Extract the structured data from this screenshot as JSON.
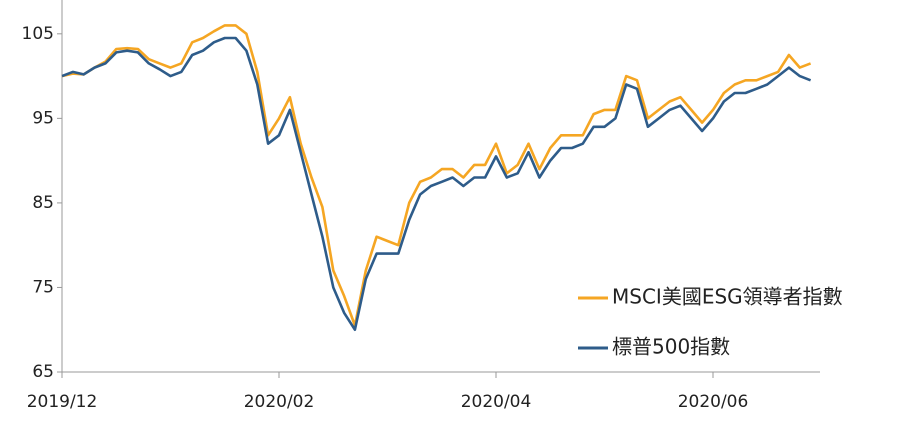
{
  "chart_data": {
    "type": "line",
    "categories": [
      "2019/12",
      null,
      null,
      null,
      null,
      null,
      null,
      null,
      null,
      null,
      null,
      null,
      null,
      null,
      null,
      null,
      null,
      null,
      null,
      null,
      "2020/02",
      null,
      null,
      null,
      null,
      null,
      null,
      null,
      null,
      null,
      null,
      null,
      null,
      null,
      null,
      null,
      null,
      null,
      null,
      null,
      "2020/04",
      null,
      null,
      null,
      null,
      null,
      null,
      null,
      null,
      null,
      null,
      null,
      null,
      null,
      null,
      null,
      null,
      null,
      null,
      null,
      "2020/06",
      null,
      null,
      null,
      null,
      null,
      null,
      null,
      null,
      null
    ],
    "series": [
      {
        "name": "MSCI美國ESG領導者指數",
        "color": "#f5a623",
        "values": [
          100,
          100.3,
          100.2,
          101,
          101.7,
          103.2,
          103.3,
          103.2,
          102,
          101.5,
          101,
          101.5,
          104,
          104.5,
          105.3,
          106,
          106,
          105,
          100.5,
          93,
          95,
          97.5,
          92,
          88,
          84.5,
          77,
          74,
          70.5,
          77,
          81,
          80.5,
          80,
          85,
          87.5,
          88,
          89,
          89,
          88,
          89.5,
          89.5,
          92,
          88.5,
          89.5,
          92,
          89,
          91.5,
          93,
          93,
          93,
          95.5,
          96,
          96,
          100,
          99.5,
          95,
          96,
          97,
          97.5,
          96,
          94.5,
          96,
          98,
          99,
          99.5,
          99.5,
          100,
          100.5,
          102.5,
          101,
          101.5
        ]
      },
      {
        "name": "標普500指數",
        "color": "#2e5c8a",
        "values": [
          100,
          100.5,
          100.2,
          101,
          101.5,
          102.8,
          103,
          102.8,
          101.5,
          100.8,
          100,
          100.5,
          102.5,
          103,
          104,
          104.5,
          104.5,
          103,
          99,
          92,
          93,
          96,
          91,
          86,
          81,
          75,
          72,
          70,
          76,
          79,
          79,
          79,
          83,
          86,
          87,
          87.5,
          88,
          87,
          88,
          88,
          90.5,
          88,
          88.5,
          91,
          88,
          90,
          91.5,
          91.5,
          92,
          94,
          94,
          95,
          99,
          98.5,
          94,
          95,
          96,
          96.5,
          95,
          93.5,
          95,
          97,
          98,
          98,
          98.5,
          99,
          100,
          101,
          100,
          99.5
        ]
      }
    ],
    "ylim": [
      65,
      109
    ],
    "yticks": [
      65,
      75,
      85,
      95,
      105
    ],
    "legend": "lower right"
  }
}
